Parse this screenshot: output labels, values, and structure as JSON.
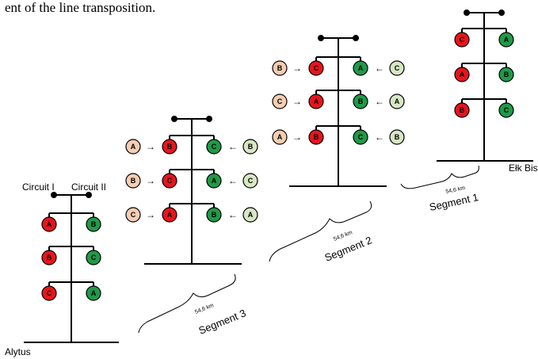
{
  "caption": "ent of the line transposition.",
  "colors": {
    "red": "#e8141c",
    "green": "#1f9a48",
    "light_red": "#f6cdb1",
    "light_green": "#d7e6c4",
    "stroke": "#000000"
  },
  "labels": {
    "circuit_1": "Circuit I",
    "circuit_2": "Circuit II",
    "alytus": "Alytus",
    "elk": "Ełk Bis",
    "arrow_right": "→",
    "arrow_left": "←"
  },
  "towers": [
    {
      "id": "alytus",
      "rows": [
        {
          "left": "A",
          "right": "B"
        },
        {
          "left": "B",
          "right": "C"
        },
        {
          "left": "C",
          "right": "A"
        }
      ],
      "arrows": false
    },
    {
      "id": "segment-3",
      "rows": [
        {
          "left": "B",
          "right": "C",
          "in_left": "A",
          "in_right": "B"
        },
        {
          "left": "C",
          "right": "A",
          "in_left": "B",
          "in_right": "C"
        },
        {
          "left": "A",
          "right": "B",
          "in_left": "C",
          "in_right": "A"
        }
      ],
      "arrows": true
    },
    {
      "id": "segment-2",
      "rows": [
        {
          "left": "C",
          "right": "A",
          "in_left": "B",
          "in_right": "C"
        },
        {
          "left": "A",
          "right": "B",
          "in_left": "C",
          "in_right": "A"
        },
        {
          "left": "B",
          "right": "C",
          "in_left": "A",
          "in_right": "B"
        }
      ],
      "arrows": true
    },
    {
      "id": "segment-1",
      "rows": [
        {
          "left": "C",
          "right": "A"
        },
        {
          "left": "A",
          "right": "B"
        },
        {
          "left": "B",
          "right": "C"
        }
      ],
      "arrows": false
    }
  ],
  "segments": [
    {
      "id": "segment-3",
      "name": "Segment 3",
      "length": "54,6 km"
    },
    {
      "id": "segment-2",
      "name": "Segment 2",
      "length": "54,6 km"
    },
    {
      "id": "segment-1",
      "name": "Segment 1",
      "length": "54,6 km"
    }
  ]
}
